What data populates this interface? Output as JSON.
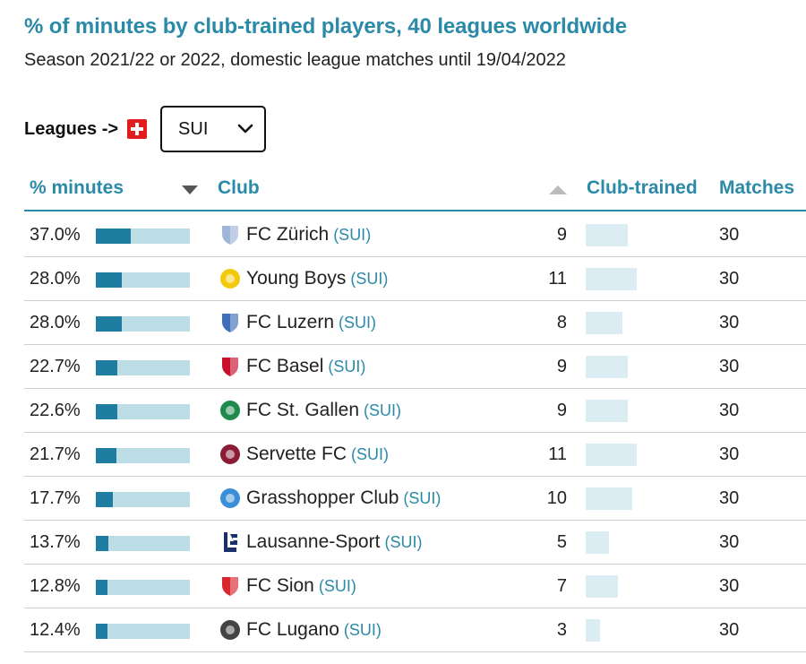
{
  "title": "% of minutes by club-trained players, 40 leagues worldwide",
  "subtitle": "Season 2021/22 or 2022, domestic league matches until 19/04/2022",
  "league_selector": {
    "label": "Leagues ->",
    "flag_icon": "swiss-flag-icon",
    "selected": "SUI"
  },
  "columns": {
    "pct_minutes": "% minutes",
    "club": "Club",
    "club_trained": "Club-trained",
    "matches": "Matches"
  },
  "colors": {
    "accent": "#2a8aa8",
    "bar_fill": "#1f7da1",
    "bar_track": "#bcdde6",
    "club_trained_bar": "#dbecf3"
  },
  "chart_data": {
    "type": "table",
    "max_club_trained": 11,
    "rows": [
      {
        "pct": "37.0%",
        "value": 37.0,
        "club": "FC Zürich",
        "country": "(SUI)",
        "club_trained": "9",
        "matches": "30",
        "crest_color": "#9fb5d9",
        "crest_shape": "shield",
        "crest_icon": "fc-zurich-crest-icon"
      },
      {
        "pct": "28.0%",
        "value": 28.0,
        "club": "Young Boys",
        "country": "(SUI)",
        "club_trained": "11",
        "matches": "30",
        "crest_color": "#f3c90c",
        "crest_shape": "circle",
        "crest_icon": "young-boys-crest-icon"
      },
      {
        "pct": "28.0%",
        "value": 28.0,
        "club": "FC Luzern",
        "country": "(SUI)",
        "club_trained": "8",
        "matches": "30",
        "crest_color": "#3f6fb8",
        "crest_shape": "shield",
        "crest_icon": "fc-luzern-crest-icon"
      },
      {
        "pct": "22.7%",
        "value": 22.7,
        "club": "FC Basel",
        "country": "(SUI)",
        "club_trained": "9",
        "matches": "30",
        "crest_color": "#c8102e",
        "crest_shape": "shield",
        "crest_icon": "fc-basel-crest-icon"
      },
      {
        "pct": "22.6%",
        "value": 22.6,
        "club": "FC St. Gallen",
        "country": "(SUI)",
        "club_trained": "9",
        "matches": "30",
        "crest_color": "#1f8a4c",
        "crest_shape": "circle",
        "crest_icon": "fc-st-gallen-crest-icon"
      },
      {
        "pct": "21.7%",
        "value": 21.7,
        "club": "Servette FC",
        "country": "(SUI)",
        "club_trained": "11",
        "matches": "30",
        "crest_color": "#8b1c36",
        "crest_shape": "circle",
        "crest_icon": "servette-fc-crest-icon"
      },
      {
        "pct": "17.7%",
        "value": 17.7,
        "club": "Grasshopper Club",
        "country": "(SUI)",
        "club_trained": "10",
        "matches": "30",
        "crest_color": "#3a8fd8",
        "crest_shape": "circle",
        "crest_icon": "grasshopper-club-crest-icon"
      },
      {
        "pct": "13.7%",
        "value": 13.7,
        "club": "Lausanne-Sport",
        "country": "(SUI)",
        "club_trained": "5",
        "matches": "30",
        "crest_color": "#1b2f6b",
        "crest_shape": "letters",
        "crest_icon": "lausanne-sport-crest-icon"
      },
      {
        "pct": "12.8%",
        "value": 12.8,
        "club": "FC Sion",
        "country": "(SUI)",
        "club_trained": "7",
        "matches": "30",
        "crest_color": "#d9272e",
        "crest_shape": "shield",
        "crest_icon": "fc-sion-crest-icon"
      },
      {
        "pct": "12.4%",
        "value": 12.4,
        "club": "FC Lugano",
        "country": "(SUI)",
        "club_trained": "3",
        "matches": "30",
        "crest_color": "#444444",
        "crest_shape": "circle",
        "crest_icon": "fc-lugano-crest-icon"
      }
    ]
  }
}
